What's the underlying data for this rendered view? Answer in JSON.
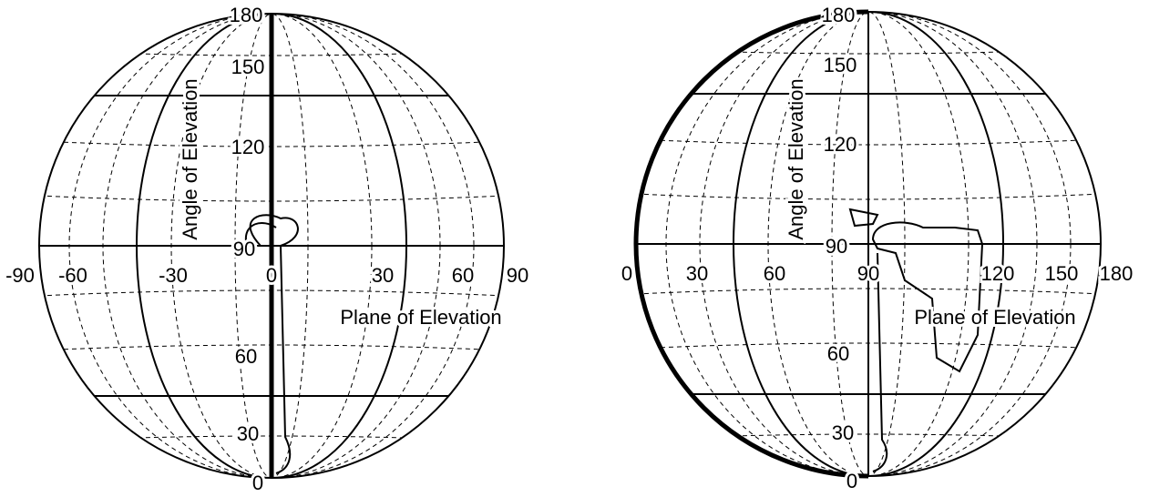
{
  "globes": [
    {
      "plane_labels": [
        "-90",
        "-60",
        "-30",
        "0",
        "30",
        "60",
        "90"
      ],
      "angle_labels": [
        "0",
        "30",
        "60",
        "90",
        "120",
        "150",
        "180"
      ],
      "angle_axis_label": "Angle of Elevation",
      "plane_axis_label": "Plane of Elevation"
    },
    {
      "plane_labels": [
        "0",
        "30",
        "60",
        "90",
        "120",
        "150",
        "180"
      ],
      "angle_labels": [
        "0",
        "30",
        "60",
        "90",
        "120",
        "150",
        "180"
      ],
      "angle_axis_label": "Angle of Elevation",
      "plane_axis_label": "Plane of Elevation"
    }
  ]
}
